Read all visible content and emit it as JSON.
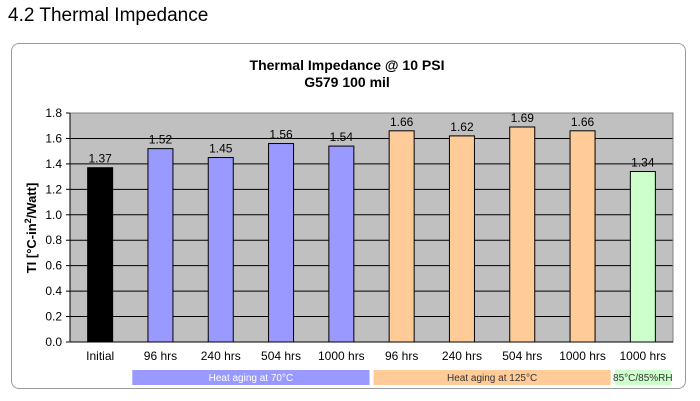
{
  "section": {
    "title": "4.2 Thermal Impedance"
  },
  "chart_data": {
    "type": "bar",
    "title": "Thermal Impedance @ 10 PSI",
    "subtitle": "G579 100 mil",
    "ylabel_parts": {
      "before": "TI [°C-in",
      "sup": "2",
      "after": "/Watt]"
    },
    "xlabel": "",
    "ylim": [
      0,
      1.8
    ],
    "yticks": [
      0,
      0.2,
      0.4,
      0.6,
      0.8,
      1.0,
      1.2,
      1.4,
      1.6,
      1.8
    ],
    "grid": true,
    "categories": [
      "Initial",
      "96 hrs",
      "240 hrs",
      "504 hrs",
      "1000 hrs",
      "96 hrs",
      "240 hrs",
      "504 hrs",
      "1000 hrs",
      "1000 hrs"
    ],
    "values": [
      1.37,
      1.52,
      1.45,
      1.56,
      1.54,
      1.66,
      1.62,
      1.69,
      1.66,
      1.34
    ],
    "bar_colors": [
      "#000000",
      "#9999ff",
      "#9999ff",
      "#9999ff",
      "#9999ff",
      "#ffcc99",
      "#ffcc99",
      "#ffcc99",
      "#ffcc99",
      "#ccffcc"
    ],
    "groups": [
      {
        "label": "Heat aging at 70°C",
        "start": 1,
        "end": 4,
        "color": "#9999ff",
        "text_color": "#ffffff"
      },
      {
        "label": "Heat aging at 125°C",
        "start": 5,
        "end": 8,
        "color": "#ffcc99",
        "text_color": "#333333"
      },
      {
        "label": "85°C/85%RH",
        "start": 9,
        "end": 9,
        "color": "#ccffcc",
        "text_color": "#333333"
      }
    ],
    "plot_background": "#c0c0c0"
  }
}
